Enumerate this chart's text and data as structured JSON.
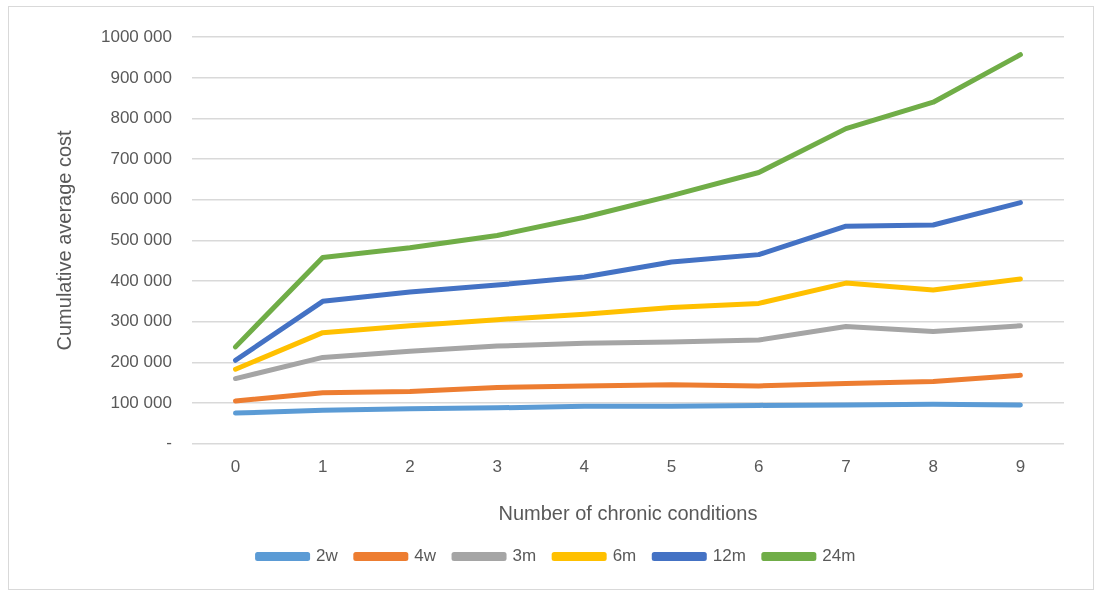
{
  "chart_data": {
    "type": "line",
    "xlabel": "Number of chronic conditions",
    "ylabel": "Cumulative average cost",
    "categories": [
      "0",
      "1",
      "2",
      "3",
      "4",
      "5",
      "6",
      "7",
      "8",
      "9"
    ],
    "ylim": [
      0,
      1000000
    ],
    "yticks": [
      {
        "value": 0,
        "label": "-"
      },
      {
        "value": 100000,
        "label": "100 000"
      },
      {
        "value": 200000,
        "label": "200 000"
      },
      {
        "value": 300000,
        "label": "300 000"
      },
      {
        "value": 400000,
        "label": "400 000"
      },
      {
        "value": 500000,
        "label": "500 000"
      },
      {
        "value": 600000,
        "label": "600 000"
      },
      {
        "value": 700000,
        "label": "700 000"
      },
      {
        "value": 800000,
        "label": "800 000"
      },
      {
        "value": 900000,
        "label": "900 000"
      },
      {
        "value": 1000000,
        "label": "1000 000"
      }
    ],
    "grid": "y",
    "legend": "bottom",
    "marker": "none",
    "line_style": "solid",
    "series": [
      {
        "name": "2w",
        "color": "#5b9bd5",
        "values": [
          75000,
          82000,
          86000,
          88000,
          92000,
          92000,
          94000,
          95000,
          97000,
          95000
        ]
      },
      {
        "name": "4w",
        "color": "#ed7d31",
        "values": [
          105000,
          125000,
          128000,
          138000,
          142000,
          145000,
          142000,
          148000,
          153000,
          168000
        ]
      },
      {
        "name": "3m",
        "color": "#a5a5a5",
        "values": [
          160000,
          212000,
          227000,
          240000,
          247000,
          250000,
          255000,
          288000,
          276000,
          290000
        ]
      },
      {
        "name": "6m",
        "color": "#ffc000",
        "values": [
          183000,
          273000,
          290000,
          305000,
          318000,
          335000,
          345000,
          395000,
          378000,
          405000
        ]
      },
      {
        "name": "12m",
        "color": "#4472c4",
        "values": [
          205000,
          350000,
          373000,
          390000,
          410000,
          447000,
          465000,
          535000,
          538000,
          593000
        ]
      },
      {
        "name": "24m",
        "color": "#70ad47",
        "values": [
          238000,
          458000,
          482000,
          512000,
          557000,
          610000,
          667000,
          775000,
          840000,
          957000
        ]
      }
    ]
  }
}
